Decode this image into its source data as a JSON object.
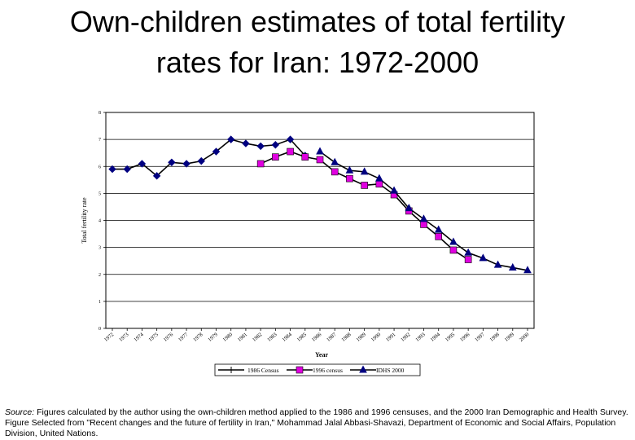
{
  "slide": {
    "title_line1": "Own-children estimates of total fertility",
    "title_line2": "rates for Iran: 1972-2000",
    "source_label": "Source:",
    "source_text": " Figures calculated by the author using the own-children method applied to the 1986 and 1996 censuses, and the 2000 Iran Demographic and Health Survey.  Figure Selected from \"Recent changes and the future of fertility in Iran,\" Mohammad Jalal Abbasi-Shavazi, Department of Economic and Social Affairs, Population Division, United Nations."
  },
  "chart_data": {
    "type": "line",
    "title": "",
    "xlabel": "Year",
    "ylabel": "Total fertility rate",
    "x": [
      1972,
      1973,
      1974,
      1975,
      1976,
      1977,
      1978,
      1979,
      1980,
      1981,
      1982,
      1983,
      1984,
      1985,
      1986,
      1987,
      1988,
      1989,
      1990,
      1991,
      1992,
      1993,
      1994,
      1995,
      1996,
      1997,
      1998,
      1999,
      2000
    ],
    "xlim": [
      1972,
      2000
    ],
    "ylim": [
      0,
      8
    ],
    "yticks": [
      0,
      1,
      2,
      3,
      4,
      5,
      6,
      7,
      8
    ],
    "grid": "horizontal",
    "legend_position": "bottom",
    "series": [
      {
        "name": "1986 Census",
        "marker": "diamond",
        "color": "#000080",
        "x": [
          1972,
          1973,
          1974,
          1975,
          1976,
          1977,
          1978,
          1979,
          1980,
          1981,
          1982,
          1983,
          1984,
          1985
        ],
        "values": [
          5.9,
          5.9,
          6.1,
          5.65,
          6.15,
          6.1,
          6.2,
          6.55,
          7.0,
          6.85,
          6.75,
          6.8,
          7.0,
          6.4
        ]
      },
      {
        "name": "1996 census",
        "marker": "square",
        "color": "#e000e0",
        "x": [
          1982,
          1983,
          1984,
          1985,
          1986,
          1987,
          1988,
          1989,
          1990,
          1991,
          1992,
          1993,
          1994,
          1995,
          1996
        ],
        "values": [
          6.1,
          6.35,
          6.55,
          6.35,
          6.25,
          5.8,
          5.55,
          5.3,
          5.35,
          4.95,
          4.35,
          3.85,
          3.4,
          2.9,
          2.55
        ]
      },
      {
        "name": "IDHS 2000",
        "marker": "triangle",
        "color": "#000080",
        "x": [
          1986,
          1987,
          1988,
          1989,
          1990,
          1991,
          1992,
          1993,
          1994,
          1995,
          1996,
          1997,
          1998,
          1999,
          2000
        ],
        "values": [
          6.55,
          6.15,
          5.85,
          5.8,
          5.55,
          5.1,
          4.45,
          4.05,
          3.65,
          3.2,
          2.8,
          2.6,
          2.35,
          2.25,
          2.15
        ]
      }
    ]
  }
}
